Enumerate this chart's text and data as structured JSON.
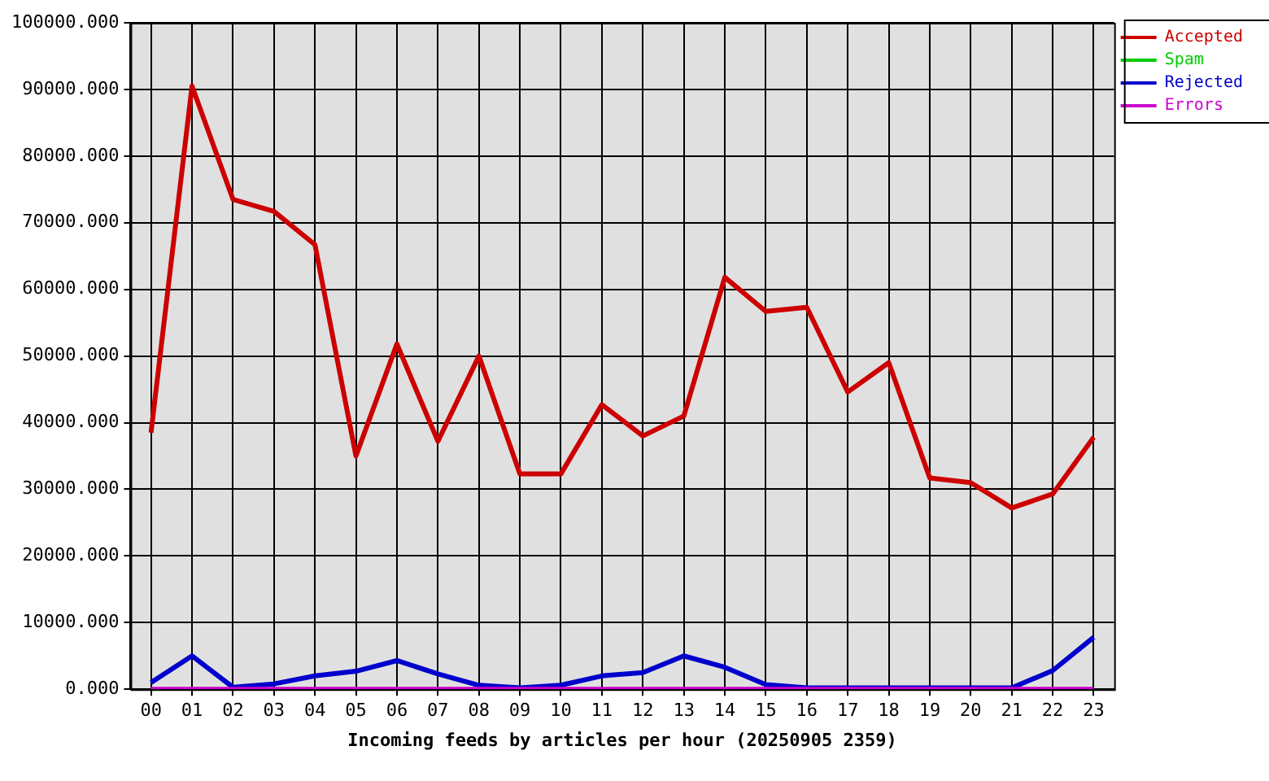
{
  "chart_data": {
    "type": "line",
    "xlabel": "Incoming feeds by articles per hour (20250905 2359)",
    "categories": [
      "00",
      "01",
      "02",
      "03",
      "04",
      "05",
      "06",
      "07",
      "08",
      "09",
      "10",
      "11",
      "12",
      "13",
      "14",
      "15",
      "16",
      "17",
      "18",
      "19",
      "20",
      "21",
      "22",
      "23"
    ],
    "series": [
      {
        "name": "Accepted",
        "color": "#cc0000",
        "values": [
          38500,
          90500,
          73500,
          71700,
          66700,
          35000,
          51800,
          37200,
          50000,
          32300,
          32300,
          42700,
          38000,
          41000,
          61800,
          56700,
          57300,
          44600,
          49000,
          31700,
          31000,
          27200,
          29300,
          37800
        ]
      },
      {
        "name": "Spam",
        "color": "#00cc00",
        "values": [
          null,
          null,
          null,
          null,
          null,
          null,
          null,
          null,
          null,
          null,
          null,
          null,
          null,
          null,
          null,
          null,
          null,
          null,
          null,
          null,
          null,
          null,
          null,
          null
        ]
      },
      {
        "name": "Rejected",
        "color": "#0000cc",
        "values": [
          1000,
          5000,
          300,
          800,
          2000,
          2700,
          4300,
          2300,
          600,
          200,
          600,
          2000,
          2500,
          5000,
          3300,
          700,
          200,
          200,
          200,
          200,
          200,
          200,
          2800,
          7800
        ]
      },
      {
        "name": "Errors",
        "color": "#cc00cc",
        "values": [
          0,
          0,
          0,
          0,
          0,
          0,
          0,
          0,
          0,
          0,
          0,
          0,
          0,
          0,
          0,
          0,
          0,
          0,
          0,
          0,
          0,
          0,
          0,
          0
        ]
      }
    ],
    "ylim": [
      0,
      100000
    ],
    "yticks": [
      {
        "value": 0,
        "label": "0.000"
      },
      {
        "value": 10000,
        "label": "10000.000"
      },
      {
        "value": 20000,
        "label": "20000.000"
      },
      {
        "value": 30000,
        "label": "30000.000"
      },
      {
        "value": 40000,
        "label": "40000.000"
      },
      {
        "value": 50000,
        "label": "50000.000"
      },
      {
        "value": 60000,
        "label": "60000.000"
      },
      {
        "value": 70000,
        "label": "70000.000"
      },
      {
        "value": 80000,
        "label": "80000.000"
      },
      {
        "value": 90000,
        "label": "90000.000"
      },
      {
        "value": 100000,
        "label": "100000.000"
      }
    ],
    "grid": true,
    "legend": "top right",
    "marker": "none",
    "line_style": "solid"
  }
}
